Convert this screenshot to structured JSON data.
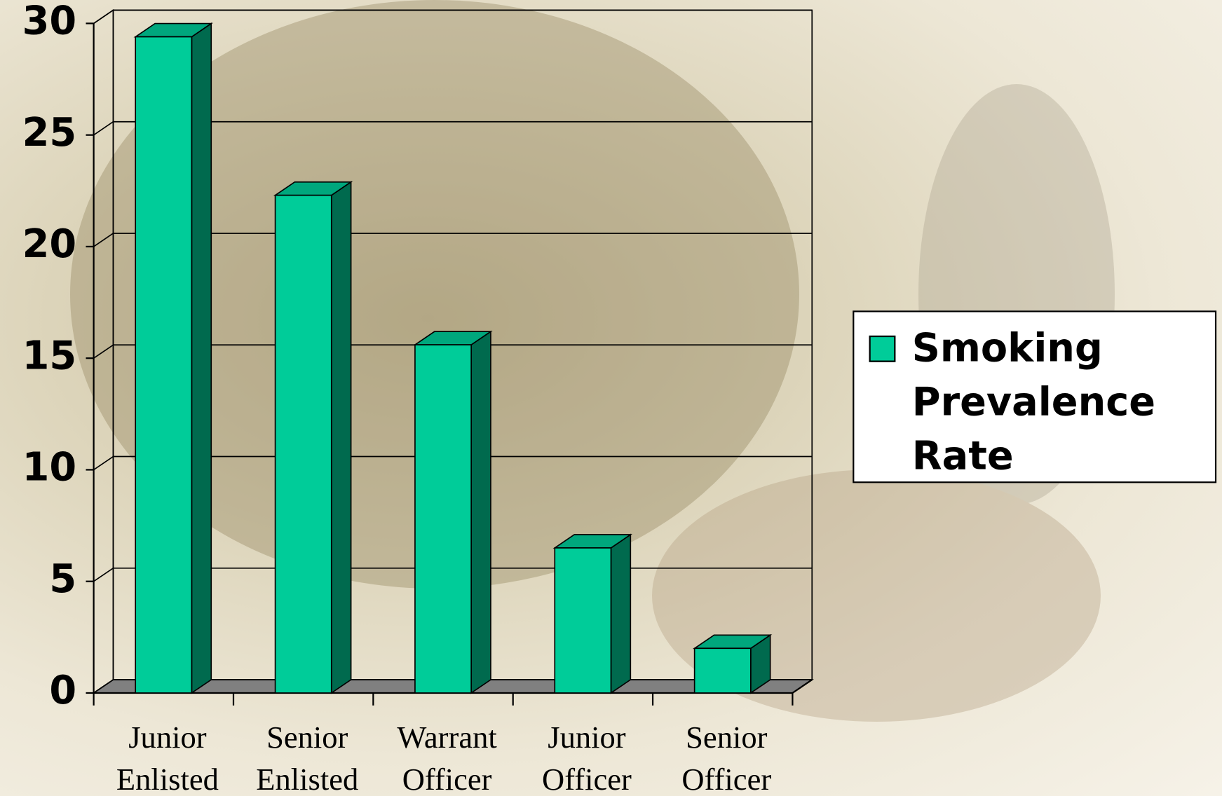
{
  "chart_data": {
    "type": "bar3d",
    "categories": [
      "Junior Enlisted",
      "Senior Enlisted",
      "Warrant Officer",
      "Junior Officer",
      "Senior Officer"
    ],
    "series": [
      {
        "name": "Smoking Prevalence Rate",
        "color": "#00cc99",
        "values": [
          29.4,
          22.3,
          15.6,
          6.5,
          2.0
        ]
      }
    ],
    "ylim": [
      0,
      30
    ],
    "yticks": [
      0,
      5,
      10,
      15,
      20,
      25,
      30
    ],
    "grid": true,
    "legend": "right"
  }
}
